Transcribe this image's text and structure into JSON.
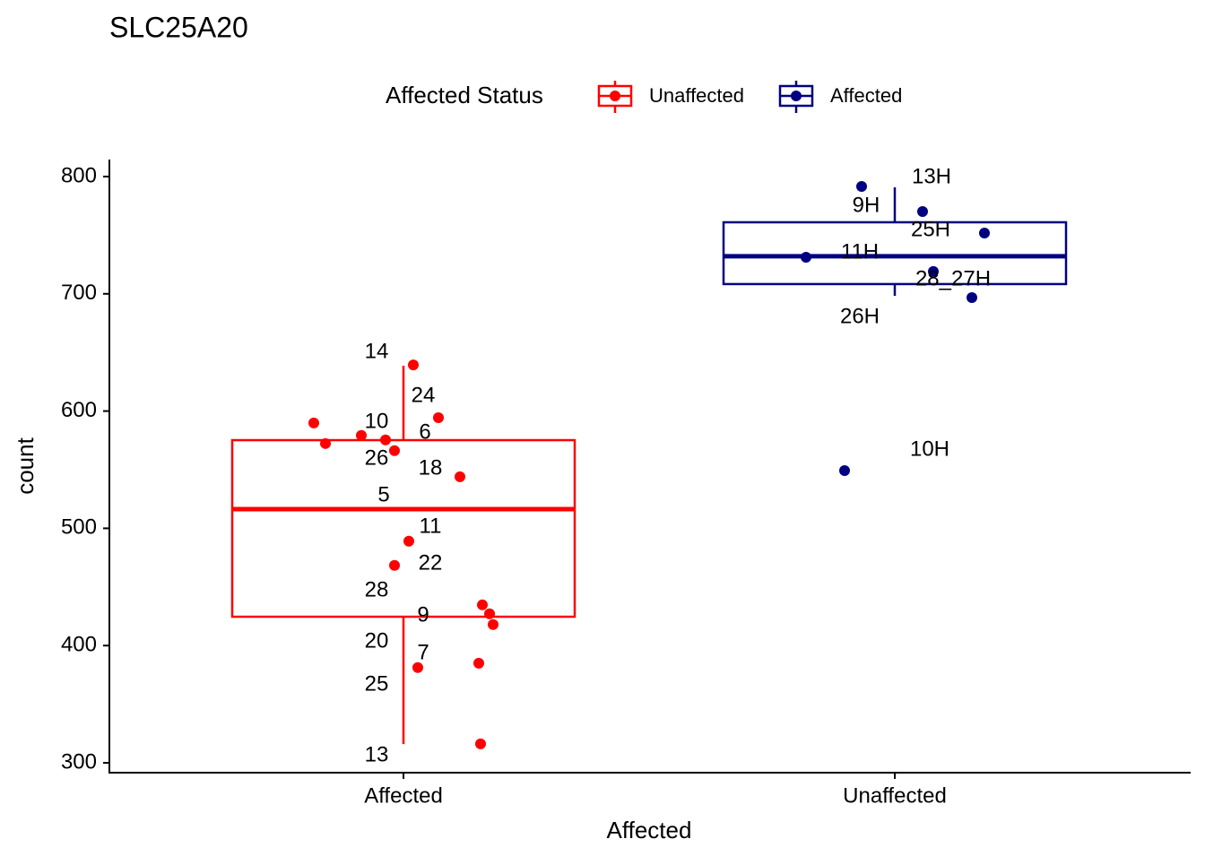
{
  "chart_data": {
    "type": "boxplot",
    "title": "SLC25A20",
    "x_label": "Affected",
    "y_label": "count",
    "legend_title": "Affected Status",
    "categories": [
      "Affected",
      "Unaffected"
    ],
    "ylim": [
      291.6,
      814.5
    ],
    "yticks": [
      300,
      400,
      500,
      600,
      700,
      800
    ],
    "series": [
      {
        "name": "Unaffected",
        "color": "#ff0000",
        "box": {
          "whisker_low": 316,
          "q1": 424.6,
          "median": 516.4,
          "q3": 575.2,
          "whisker_high": 638.7
        },
        "values": [
          639.3,
          594.3,
          589.8,
          572.3,
          579.2,
          575.4,
          566.2,
          544.0,
          489.0,
          468.4,
          434.7,
          427.1,
          417.9,
          385.0,
          381.2,
          316.2
        ],
        "point_labels": [
          "14",
          "24",
          "10",
          "26",
          null,
          "6",
          "5",
          "18",
          "11",
          "22",
          "28",
          "9",
          "20",
          "25",
          "7",
          "13"
        ]
      },
      {
        "name": "Affected",
        "color": "#000080",
        "box": {
          "whisker_low": 698.3,
          "q1": 708.3,
          "median": 732.0,
          "q3": 761.0,
          "whisker_high": 790.8
        },
        "values": [
          791.6,
          770.2,
          751.8,
          731.2,
          719.0,
          696.8,
          549.2
        ],
        "point_labels": [
          "13H",
          "9H",
          "25H",
          "11H",
          "28_27H",
          "26H",
          "10H"
        ]
      }
    ]
  }
}
